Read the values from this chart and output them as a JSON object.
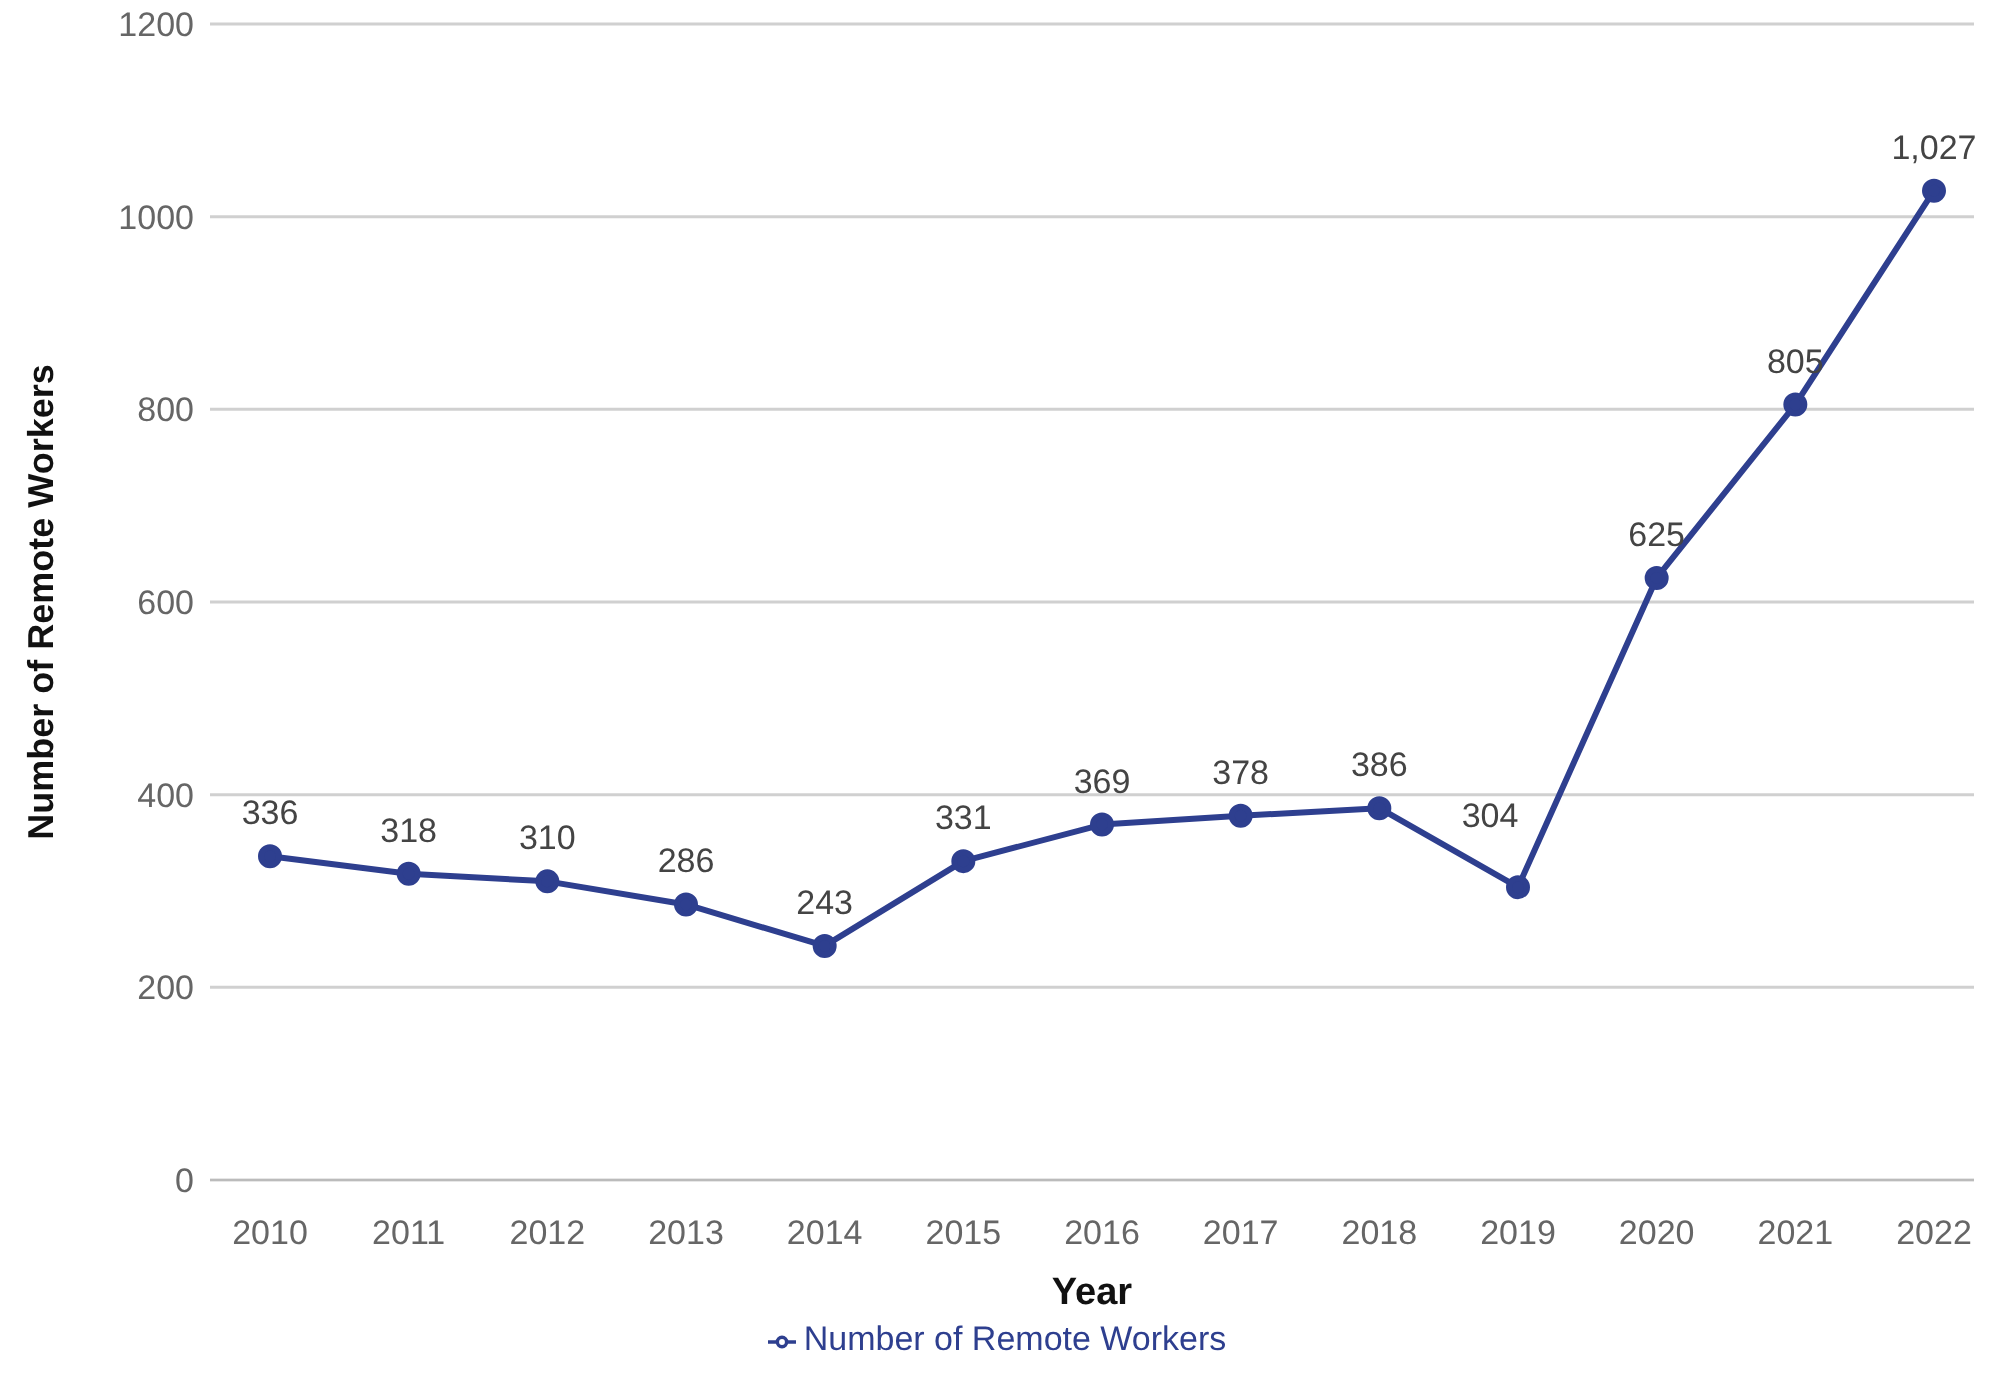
{
  "chart_data": {
    "type": "line",
    "xlabel": "Year",
    "ylabel": "Number of Remote Workers",
    "categories": [
      "2010",
      "2011",
      "2012",
      "2013",
      "2014",
      "2015",
      "2016",
      "2017",
      "2018",
      "2019",
      "2020",
      "2021",
      "2022"
    ],
    "series": [
      {
        "name": "Number of Remote Workers",
        "color": "#2e3f8f",
        "values": [
          336,
          318,
          310,
          286,
          243,
          331,
          369,
          378,
          386,
          304,
          625,
          805,
          1027
        ],
        "value_labels": [
          "336",
          "318",
          "310",
          "286",
          "243",
          "331",
          "369",
          "378",
          "386",
          "304",
          "625",
          "805",
          "1,027"
        ]
      }
    ],
    "ylim": [
      0,
      1200
    ],
    "yticks": [
      0,
      200,
      400,
      600,
      800,
      1000,
      1200
    ],
    "grid": "y",
    "legend": "bottom",
    "marker": "circle"
  }
}
